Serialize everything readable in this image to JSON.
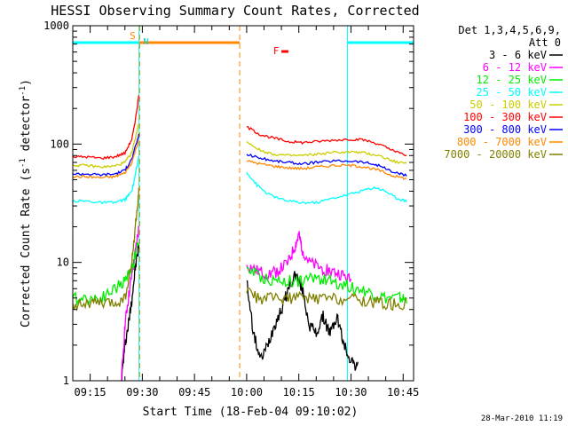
{
  "chart_data": {
    "type": "line",
    "title": "HESSI Observing Summary Count Rates, Corrected",
    "xlabel": "Start Time (18-Feb-04 09:10:02)",
    "ylabel_main": "Corrected Count Rate (s",
    "ylabel_sup1": "-1",
    "ylabel_mid": " detector",
    "ylabel_sup2": "-1",
    "ylabel_end": ")",
    "y_scale": "log",
    "ylim": [
      1,
      1000
    ],
    "xlim": [
      "09:10",
      "10:48"
    ],
    "x_ticks": [
      "09:15",
      "09:30",
      "09:45",
      "10:00",
      "10:15",
      "10:30",
      "10:45"
    ],
    "y_ticks": [
      "1",
      "10",
      "100",
      "1000"
    ],
    "footer_date": "28-Mar-2010 11:19",
    "legend": {
      "placement": "right",
      "header_line1": "Det 1,3,4,5,6,9,",
      "header_line2": "Att 0"
    },
    "series": [
      {
        "name": "3 - 6 keV",
        "color": "#000000",
        "points": [
          [
            "09:24",
            1.0
          ],
          [
            "09:25",
            2.0
          ],
          [
            "09:26",
            3.0
          ],
          [
            "09:27",
            5.0
          ],
          [
            "09:28",
            9.0
          ],
          [
            "09:29",
            14.0
          ],
          [
            "10:00",
            7.0
          ],
          [
            "10:02",
            2.5
          ],
          [
            "10:04",
            1.5
          ],
          [
            "10:06",
            2.0
          ],
          [
            "10:08",
            3.0
          ],
          [
            "10:10",
            4.0
          ],
          [
            "10:12",
            6.0
          ],
          [
            "10:14",
            8.0
          ],
          [
            "10:16",
            6.0
          ],
          [
            "10:18",
            3.0
          ],
          [
            "10:20",
            2.5
          ],
          [
            "10:22",
            3.5
          ],
          [
            "10:24",
            2.5
          ],
          [
            "10:26",
            3.5
          ],
          [
            "10:28",
            2.0
          ],
          [
            "10:30",
            1.5
          ],
          [
            "10:32",
            1.3
          ]
        ]
      },
      {
        "name": "6 - 12 keV",
        "color": "#ff00ff",
        "points": [
          [
            "09:24",
            1.0
          ],
          [
            "09:25",
            3.0
          ],
          [
            "09:26",
            5.0
          ],
          [
            "09:27",
            8.0
          ],
          [
            "09:28",
            12.0
          ],
          [
            "09:29",
            20.0
          ],
          [
            "10:00",
            9.5
          ],
          [
            "10:03",
            8.5
          ],
          [
            "10:06",
            8.0
          ],
          [
            "10:09",
            8.5
          ],
          [
            "10:12",
            10.0
          ],
          [
            "10:14",
            14.0
          ],
          [
            "10:15",
            17.0
          ],
          [
            "10:16",
            13.0
          ],
          [
            "10:18",
            10.0
          ],
          [
            "10:21",
            9.0
          ],
          [
            "10:24",
            8.5
          ],
          [
            "10:27",
            8.0
          ],
          [
            "10:30",
            7.0
          ]
        ]
      },
      {
        "name": "12 - 25 keV",
        "color": "#00ee00",
        "points": [
          [
            "09:10",
            5.0
          ],
          [
            "09:14",
            5.0
          ],
          [
            "09:18",
            5.0
          ],
          [
            "09:22",
            6.0
          ],
          [
            "09:25",
            7.0
          ],
          [
            "09:27",
            9.0
          ],
          [
            "09:29",
            15.0
          ],
          [
            "10:00",
            9.0
          ],
          [
            "10:04",
            7.5
          ],
          [
            "10:08",
            7.0
          ],
          [
            "10:12",
            7.0
          ],
          [
            "10:16",
            7.0
          ],
          [
            "10:20",
            7.5
          ],
          [
            "10:24",
            7.0
          ],
          [
            "10:28",
            6.5
          ],
          [
            "10:32",
            6.0
          ],
          [
            "10:36",
            5.5
          ],
          [
            "10:40",
            5.0
          ],
          [
            "10:44",
            5.0
          ],
          [
            "10:46",
            4.8
          ]
        ]
      },
      {
        "name": "25 - 50 keV",
        "color": "#00ffff",
        "points": [
          [
            "09:10",
            33
          ],
          [
            "09:14",
            33
          ],
          [
            "09:18",
            32
          ],
          [
            "09:22",
            32
          ],
          [
            "09:25",
            34
          ],
          [
            "09:27",
            40
          ],
          [
            "09:28",
            55
          ],
          [
            "09:29",
            80
          ],
          [
            "10:00",
            58
          ],
          [
            "10:03",
            45
          ],
          [
            "10:06",
            38
          ],
          [
            "10:10",
            34
          ],
          [
            "10:15",
            32
          ],
          [
            "10:20",
            32
          ],
          [
            "10:25",
            35
          ],
          [
            "10:30",
            38
          ],
          [
            "10:34",
            41
          ],
          [
            "10:37",
            43
          ],
          [
            "10:40",
            40
          ],
          [
            "10:43",
            35
          ],
          [
            "10:46",
            33
          ]
        ]
      },
      {
        "name": "50 - 100 keV",
        "color": "#cccc00",
        "points": [
          [
            "09:10",
            66
          ],
          [
            "09:14",
            66
          ],
          [
            "09:18",
            64
          ],
          [
            "09:22",
            65
          ],
          [
            "09:25",
            70
          ],
          [
            "09:27",
            85
          ],
          [
            "09:29",
            150
          ],
          [
            "10:00",
            105
          ],
          [
            "10:04",
            88
          ],
          [
            "10:08",
            82
          ],
          [
            "10:12",
            80
          ],
          [
            "10:16",
            80
          ],
          [
            "10:20",
            82
          ],
          [
            "10:25",
            85
          ],
          [
            "10:30",
            86
          ],
          [
            "10:34",
            84
          ],
          [
            "10:38",
            80
          ],
          [
            "10:42",
            72
          ],
          [
            "10:46",
            68
          ]
        ]
      },
      {
        "name": "100 - 300 keV",
        "color": "#ff0000",
        "points": [
          [
            "09:10",
            78
          ],
          [
            "09:14",
            78
          ],
          [
            "09:18",
            76
          ],
          [
            "09:22",
            78
          ],
          [
            "09:25",
            84
          ],
          [
            "09:27",
            110
          ],
          [
            "09:28",
            160
          ],
          [
            "09:29",
            260
          ],
          [
            "10:00",
            140
          ],
          [
            "10:04",
            120
          ],
          [
            "10:08",
            112
          ],
          [
            "10:12",
            105
          ],
          [
            "10:16",
            103
          ],
          [
            "10:20",
            105
          ],
          [
            "10:25",
            108
          ],
          [
            "10:30",
            110
          ],
          [
            "10:34",
            108
          ],
          [
            "10:38",
            100
          ],
          [
            "10:42",
            88
          ],
          [
            "10:46",
            80
          ]
        ]
      },
      {
        "name": "300 - 800 keV",
        "color": "#0000ff",
        "points": [
          [
            "09:10",
            56
          ],
          [
            "09:14",
            56
          ],
          [
            "09:18",
            55
          ],
          [
            "09:22",
            56
          ],
          [
            "09:25",
            60
          ],
          [
            "09:27",
            75
          ],
          [
            "09:29",
            120
          ],
          [
            "10:00",
            82
          ],
          [
            "10:04",
            76
          ],
          [
            "10:08",
            72
          ],
          [
            "10:12",
            70
          ],
          [
            "10:16",
            68
          ],
          [
            "10:20",
            70
          ],
          [
            "10:25",
            72
          ],
          [
            "10:30",
            72
          ],
          [
            "10:34",
            70
          ],
          [
            "10:38",
            66
          ],
          [
            "10:42",
            58
          ],
          [
            "10:46",
            54
          ]
        ]
      },
      {
        "name": "800 - 7000 keV",
        "color": "#ff8800",
        "points": [
          [
            "09:10",
            53
          ],
          [
            "09:14",
            53
          ],
          [
            "09:18",
            52
          ],
          [
            "09:22",
            53
          ],
          [
            "09:25",
            57
          ],
          [
            "09:27",
            70
          ],
          [
            "09:29",
            110
          ],
          [
            "10:00",
            72
          ],
          [
            "10:04",
            68
          ],
          [
            "10:08",
            65
          ],
          [
            "10:12",
            63
          ],
          [
            "10:16",
            62
          ],
          [
            "10:20",
            64
          ],
          [
            "10:25",
            66
          ],
          [
            "10:30",
            66
          ],
          [
            "10:34",
            64
          ],
          [
            "10:38",
            60
          ],
          [
            "10:42",
            54
          ],
          [
            "10:46",
            51
          ]
        ]
      },
      {
        "name": "7000 - 20000 keV",
        "color": "#808000",
        "points": [
          [
            "09:10",
            4.5
          ],
          [
            "09:14",
            4.5
          ],
          [
            "09:18",
            4.5
          ],
          [
            "09:22",
            4.5
          ],
          [
            "09:25",
            5.0
          ],
          [
            "09:27",
            10
          ],
          [
            "09:28",
            20
          ],
          [
            "09:29",
            40
          ],
          [
            "10:00",
            5.5
          ],
          [
            "10:04",
            5.0
          ],
          [
            "10:08",
            5.0
          ],
          [
            "10:12",
            5.0
          ],
          [
            "10:16",
            5.0
          ],
          [
            "10:20",
            5.0
          ],
          [
            "10:25",
            5.0
          ],
          [
            "10:30",
            5.0
          ],
          [
            "10:34",
            4.8
          ],
          [
            "10:38",
            4.6
          ],
          [
            "10:42",
            4.5
          ],
          [
            "10:46",
            4.5
          ]
        ]
      }
    ],
    "annotations": {
      "markers": [
        {
          "label": "S",
          "at": "09:29",
          "color": "#ff8800"
        },
        {
          "label": "N",
          "at": "09:29",
          "color": "#00cccc"
        },
        {
          "label": "F",
          "at": "10:09",
          "color": "#ff0000"
        }
      ],
      "top_bars": [
        {
          "from": "09:10",
          "to": "09:29",
          "color": "#00ffff"
        },
        {
          "from": "09:29",
          "to": "09:58",
          "color": "#ff8800"
        },
        {
          "from": "10:10",
          "to": "10:12",
          "color": "#ff0000"
        },
        {
          "from": "10:29",
          "to": "10:48",
          "color": "#00ffff"
        }
      ],
      "vlines": [
        {
          "at": "09:29",
          "color": "#00ffff",
          "style": "solid"
        },
        {
          "at": "09:29",
          "color": "#ff8800",
          "style": "dashed"
        },
        {
          "at": "09:58",
          "color": "#ff8800",
          "style": "dashed"
        },
        {
          "at": "10:29",
          "color": "#00ffff",
          "style": "solid"
        },
        {
          "at": "10:48",
          "color": "#00ffff",
          "style": "dashed"
        }
      ]
    }
  }
}
